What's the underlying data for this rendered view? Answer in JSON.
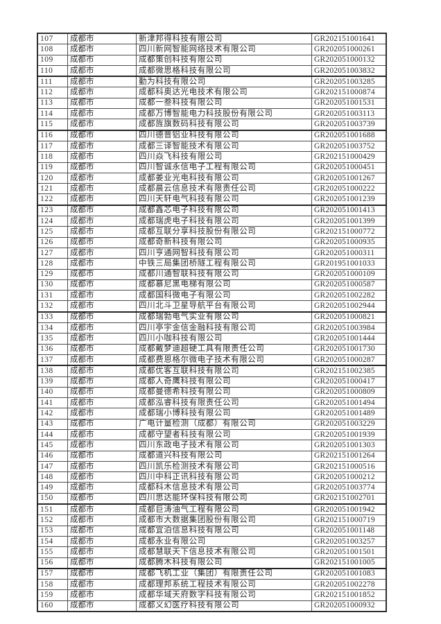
{
  "styles": {
    "border_color": "#4c4c4c",
    "outer_border_color": "#2f2f2f",
    "text_color": "#2e2e2e",
    "code_text_color": "#4a4a4a",
    "background": "#ffffff"
  },
  "table": {
    "columns": [
      "row-number",
      "city",
      "company-name",
      "gr-code"
    ],
    "rows": [
      {
        "no": "107",
        "city": "成都市",
        "company": "新津邦得科技有限公司",
        "code": "GR202151001641",
        "thick_top": false
      },
      {
        "no": "108",
        "city": "成都市",
        "company": "四川新网智能网络技术有限公司",
        "code": "GR202051000261",
        "thick_top": false
      },
      {
        "no": "109",
        "city": "成都市",
        "company": "成都策创科技有限公司",
        "code": "GR202051000132",
        "thick_top": false
      },
      {
        "no": "110",
        "city": "成都市",
        "company": "成都微思格科技有限公司",
        "code": "GR202051003832",
        "thick_top": false
      },
      {
        "no": "111",
        "city": "成都市",
        "company": "勤为科技有限公司",
        "code": "GR202051003285",
        "thick_top": true
      },
      {
        "no": "112",
        "city": "成都市",
        "company": "成都科奥达光电技术有限公司",
        "code": "GR202151000874",
        "thick_top": false
      },
      {
        "no": "113",
        "city": "成都市",
        "company": "成都一叁科技有限公司",
        "code": "GR202051001531",
        "thick_top": false
      },
      {
        "no": "114",
        "city": "成都市",
        "company": "成都万博智能电力科技股份有限公司",
        "code": "GR202051003113",
        "thick_top": false
      },
      {
        "no": "115",
        "city": "成都市",
        "company": "成都旌旗数码科技有限公司",
        "code": "GR202051003739",
        "thick_top": false
      },
      {
        "no": "116",
        "city": "成都市",
        "company": "四川德普铝业科技有限公司",
        "code": "GR202051001688",
        "thick_top": true
      },
      {
        "no": "117",
        "city": "成都市",
        "company": "成都三译智能技术有限公司",
        "code": "GR202051003752",
        "thick_top": false
      },
      {
        "no": "118",
        "city": "成都市",
        "company": "四川焱飞科技有限公司",
        "code": "GR202151000429",
        "thick_top": false
      },
      {
        "no": "119",
        "city": "成都市",
        "company": "四川智诚永信电子工程有限公司",
        "code": "GR202051000451",
        "thick_top": false
      },
      {
        "no": "120",
        "city": "成都市",
        "company": "成都姜业光电科技有限公司",
        "code": "GR202051001267",
        "thick_top": false
      },
      {
        "no": "121",
        "city": "成都市",
        "company": "成都晨云信息技术有限责任公司",
        "code": "GR202051000222",
        "thick_top": false
      },
      {
        "no": "122",
        "city": "成都市",
        "company": "四川天轩电气科技有限公司",
        "code": "GR202051001239",
        "thick_top": false
      },
      {
        "no": "123",
        "city": "成都市",
        "company": "成都鑫芯电子科技有限公司",
        "code": "GR202051001413",
        "thick_top": true
      },
      {
        "no": "124",
        "city": "成都市",
        "company": "成都瑞虎电子科技有限公司",
        "code": "GR202051001399",
        "thick_top": false
      },
      {
        "no": "125",
        "city": "成都市",
        "company": "成都互联分享科技股份有限公司",
        "code": "GR202151000772",
        "thick_top": false
      },
      {
        "no": "126",
        "city": "成都市",
        "company": "成都奇新科技有限公司",
        "code": "GR202051000935",
        "thick_top": false
      },
      {
        "no": "127",
        "city": "成都市",
        "company": "四川亨通网智科技有限公司",
        "code": "GR202051000311",
        "thick_top": false
      },
      {
        "no": "128",
        "city": "成都市",
        "company": "中铁三局集团桥隧工程有限公司",
        "code": "GR201951001033",
        "thick_top": false
      },
      {
        "no": "129",
        "city": "成都市",
        "company": "成都川通智联科技有限公司",
        "code": "GR202051000109",
        "thick_top": false
      },
      {
        "no": "130",
        "city": "成都市",
        "company": "成都慕尼黑电梯有限公司",
        "code": "GR202051000587",
        "thick_top": false
      },
      {
        "no": "131",
        "city": "成都市",
        "company": "成都国科微电子有限公司",
        "code": "GR202051002282",
        "thick_top": false
      },
      {
        "no": "132",
        "city": "成都市",
        "company": "四川北斗卫星导航平台有限公司",
        "code": "GR202051002944",
        "thick_top": false
      },
      {
        "no": "133",
        "city": "成都市",
        "company": "成都瑞勃电气实业有限公司",
        "code": "GR202051000821",
        "thick_top": true
      },
      {
        "no": "134",
        "city": "成都市",
        "company": "四川亭宇金信金融科技有限公司",
        "code": "GR202051003984",
        "thick_top": false
      },
      {
        "no": "135",
        "city": "成都市",
        "company": "四川小咖科技有限公司",
        "code": "GR202051001444",
        "thick_top": false
      },
      {
        "no": "136",
        "city": "成都市",
        "company": "成都戴梦迪超硬工具有限责任公司",
        "code": "GR202051001730",
        "thick_top": false
      },
      {
        "no": "137",
        "city": "成都市",
        "company": "成都费恩格尔微电子技术有限公司",
        "code": "GR202051000287",
        "thick_top": false
      },
      {
        "no": "138",
        "city": "成都市",
        "company": "成都优客互联科技有限公司",
        "code": "GR202151002385",
        "thick_top": true
      },
      {
        "no": "139",
        "city": "成都市",
        "company": "成都人奇鹰科技有限公司",
        "code": "GR202051000417",
        "thick_top": false
      },
      {
        "no": "140",
        "city": "成都市",
        "company": "成都曼德希科技有限公司",
        "code": "GR202051000809",
        "thick_top": false
      },
      {
        "no": "141",
        "city": "成都市",
        "company": "成都泓睿科技有限责任公司",
        "code": "GR202051001494",
        "thick_top": false
      },
      {
        "no": "142",
        "city": "成都市",
        "company": "成都瑞小博科技有限公司",
        "code": "GR202051001489",
        "thick_top": false
      },
      {
        "no": "143",
        "city": "成都市",
        "company": "广电计量检测（成都）有限公司",
        "code": "GR202051003229",
        "thick_top": false
      },
      {
        "no": "144",
        "city": "成都市",
        "company": "成都守望者科技有限公司",
        "code": "GR202051001939",
        "thick_top": false
      },
      {
        "no": "145",
        "city": "成都市",
        "company": "四川东政电子技术有限公司",
        "code": "GR202051001303",
        "thick_top": false
      },
      {
        "no": "146",
        "city": "成都市",
        "company": "成都道兴科技有限公司",
        "code": "GR202151001264",
        "thick_top": false
      },
      {
        "no": "147",
        "city": "成都市",
        "company": "四川凯乐检测技术有限公司",
        "code": "GR202151000516",
        "thick_top": false
      },
      {
        "no": "148",
        "city": "成都市",
        "company": "四川中科正讯科技有限公司",
        "code": "GR202051000212",
        "thick_top": false
      },
      {
        "no": "149",
        "city": "成都市",
        "company": "成都科木信息技术有限公司",
        "code": "GR202051003774",
        "thick_top": false
      },
      {
        "no": "150",
        "city": "成都市",
        "company": "四川思达能环保科技有限公司",
        "code": "GR202151002701",
        "thick_top": false
      },
      {
        "no": "151",
        "city": "成都市",
        "company": "成都巨涛油气工程有限公司",
        "code": "GR202051001942",
        "thick_top": true
      },
      {
        "no": "152",
        "city": "成都市",
        "company": "成都市大数据集团股份有限公司",
        "code": "GR202151000719",
        "thick_top": false
      },
      {
        "no": "153",
        "city": "成都市",
        "company": "成都宜泊信息科技有限公司",
        "code": "GR202051001148",
        "thick_top": false
      },
      {
        "no": "154",
        "city": "成都市",
        "company": "成都永业有限公司",
        "code": "GR202051003257",
        "thick_top": false
      },
      {
        "no": "155",
        "city": "成都市",
        "company": "成都慧联天下信息技术有限公司",
        "code": "GR202051001501",
        "thick_top": false
      },
      {
        "no": "156",
        "city": "成都市",
        "company": "成都腾木科技有限公司",
        "code": "GR202151001005",
        "thick_top": false
      },
      {
        "no": "157",
        "city": "成都市",
        "company": "成都飞机工业（集团）有限责任公司",
        "code": "GR202051001083",
        "thick_top": true
      },
      {
        "no": "158",
        "city": "成都市",
        "company": "成都理邦系统工程技术有限公司",
        "code": "GR202051002278",
        "thick_top": false
      },
      {
        "no": "159",
        "city": "成都市",
        "company": "成都华域天府数字科技有限公司",
        "code": "GR202151001852",
        "thick_top": false
      },
      {
        "no": "160",
        "city": "成都市",
        "company": "成都义幻医疗科技有限公司",
        "code": "GR202051000932",
        "thick_top": false
      }
    ]
  }
}
